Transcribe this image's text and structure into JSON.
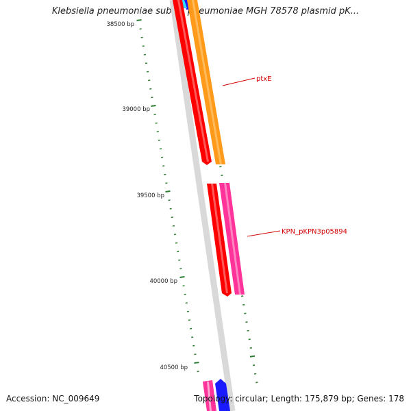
{
  "title": "Klebsiella pneumoniae subsp. pneumoniae MGH 78578 plasmid pK...",
  "footer": {
    "accession": "Accession: NC_009649",
    "summary": "Topology: circular; Length: 175,879 bp; Genes: 178"
  },
  "colors": {
    "backbone": "#8a8a8a",
    "ticks": "#2e7d32",
    "reverse_gene": "#ff0000",
    "gene_orange": "#ff9a1a",
    "gene_pink": "#ff3399",
    "gene_blue": "#1a1aff",
    "label": "#d40000"
  },
  "ruler": {
    "labels": [
      {
        "bp": 38500,
        "text": "38500 bp"
      },
      {
        "bp": 39000,
        "text": "39000 bp"
      },
      {
        "bp": 39500,
        "text": "39500 bp"
      },
      {
        "bp": 40000,
        "text": "40000 bp"
      },
      {
        "bp": 40500,
        "text": "40500 bp"
      }
    ]
  },
  "features": [
    {
      "name": "ptxE",
      "label": "ptxE"
    },
    {
      "name": "KPN_pKPN3p05894",
      "label": "KPN_pKPN3p05894"
    }
  ]
}
